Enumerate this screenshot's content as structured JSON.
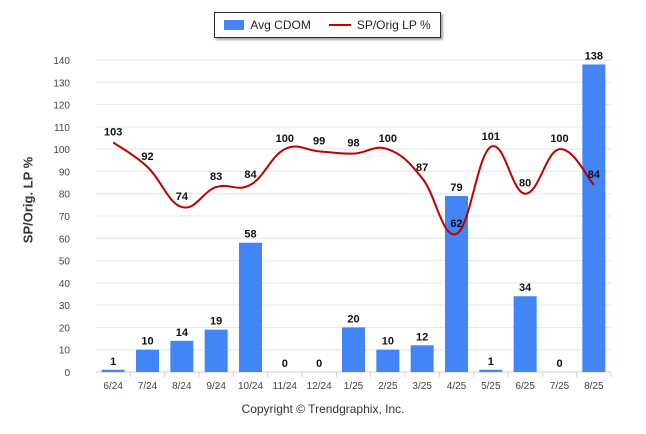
{
  "chart_data": {
    "type": "bar",
    "categories": [
      "6/24",
      "7/24",
      "8/24",
      "9/24",
      "10/24",
      "11/24",
      "12/24",
      "1/25",
      "2/25",
      "3/25",
      "4/25",
      "5/25",
      "6/25",
      "7/25",
      "8/25"
    ],
    "series": [
      {
        "name": "Avg CDOM",
        "type": "bar",
        "color": "#4285f4",
        "values": [
          1,
          10,
          14,
          19,
          58,
          0,
          0,
          20,
          10,
          12,
          79,
          1,
          34,
          0,
          138
        ]
      },
      {
        "name": "SP/Orig LP %",
        "type": "line",
        "color": "#c00000",
        "values": [
          103,
          92,
          74,
          83,
          84,
          100,
          99,
          98,
          100,
          87,
          62,
          101,
          80,
          100,
          84
        ]
      }
    ],
    "ylabel": "SP/Orig. LP %",
    "ylim": [
      0,
      140
    ],
    "yticks": [
      0,
      10,
      20,
      30,
      40,
      50,
      60,
      70,
      80,
      90,
      100,
      110,
      120,
      130,
      140
    ],
    "grid": true,
    "legend_position": "top-center"
  },
  "legend": {
    "bar_label": "Avg CDOM",
    "line_label": "SP/Orig LP %"
  },
  "footer": {
    "copyright": "Copyright © Trendgraphix, Inc."
  }
}
